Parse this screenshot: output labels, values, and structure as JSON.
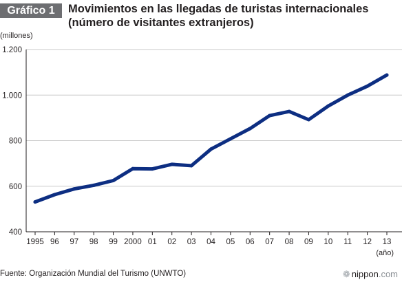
{
  "header": {
    "tag": "Gráfico 1",
    "title_line1": "Movimientos en las llegadas de turistas internacionales",
    "title_line2": "(número de visitantes extranjeros)"
  },
  "footer": {
    "source": "Fuente: Organización Mundial del Turismo (UNWTO)",
    "brand_name": "nippon",
    "brand_domain": ".com"
  },
  "colors": {
    "line": "#0d2e82",
    "grid": "#c8c8c8",
    "tag_bg": "#6d6e71"
  },
  "chart_data": {
    "type": "line",
    "ylabel": "(millones)",
    "xlabel": "(año)",
    "ylim": [
      400,
      1200
    ],
    "yticks": [
      400,
      600,
      800,
      1000,
      1200
    ],
    "ytick_labels": [
      "400",
      "600",
      "800",
      "1.000",
      "1.200"
    ],
    "grid": true,
    "categories": [
      "1995",
      "96",
      "97",
      "98",
      "99",
      "2000",
      "01",
      "02",
      "03",
      "04",
      "05",
      "06",
      "07",
      "08",
      "09",
      "10",
      "11",
      "12",
      "13"
    ],
    "series": [
      {
        "values": [
          531,
          563,
          588,
          604,
          625,
          677,
          676,
          696,
          690,
          763,
          808,
          853,
          910,
          928,
          892,
          952,
          1000,
          1039,
          1088
        ]
      }
    ]
  }
}
